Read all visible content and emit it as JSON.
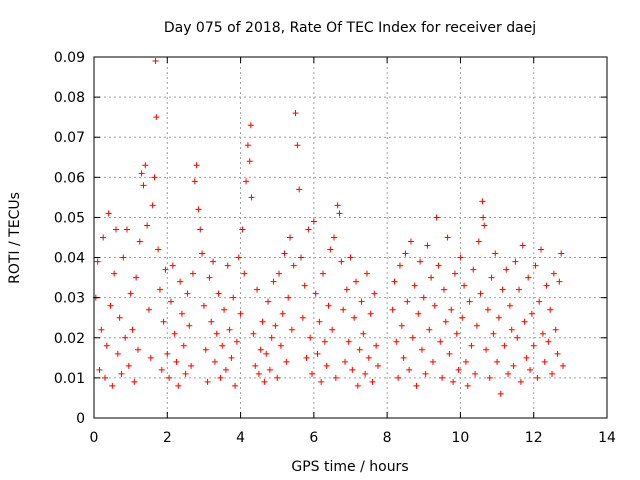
{
  "chart_data": {
    "type": "scatter",
    "title": "Day 075 of 2018, Rate Of TEC Index for receiver daej",
    "xlabel": "GPS time / hours",
    "ylabel": "ROTI / TECUs",
    "xlim": [
      0,
      14
    ],
    "ylim": [
      0,
      0.09
    ],
    "xticks": [
      0,
      2,
      4,
      6,
      8,
      10,
      12,
      14
    ],
    "xtick_labels": [
      "0",
      "2",
      "4",
      "6",
      "8",
      "10",
      "12",
      "14"
    ],
    "yticks": [
      0,
      0.01,
      0.02,
      0.03,
      0.04,
      0.05,
      0.06,
      0.07,
      0.08,
      0.09
    ],
    "ytick_labels": [
      "0",
      "0.01",
      "0.02",
      "0.03",
      "0.04",
      "0.05",
      "0.06",
      "0.07",
      "0.08",
      "0.09"
    ],
    "grid": true,
    "marker": "plus",
    "series": [
      {
        "name": "ROTI",
        "color": "#ff0000",
        "points": [
          [
            0.05,
            0.03
          ],
          [
            0.1,
            0.039
          ],
          [
            0.15,
            0.012
          ],
          [
            0.2,
            0.022
          ],
          [
            0.25,
            0.045
          ],
          [
            0.3,
            0.01
          ],
          [
            0.35,
            0.018
          ],
          [
            0.4,
            0.051
          ],
          [
            0.45,
            0.028
          ],
          [
            0.5,
            0.008
          ],
          [
            0.55,
            0.036
          ],
          [
            0.6,
            0.047
          ],
          [
            0.65,
            0.016
          ],
          [
            0.7,
            0.025
          ],
          [
            0.75,
            0.011
          ],
          [
            0.8,
            0.04
          ],
          [
            0.85,
            0.02
          ],
          [
            0.9,
            0.047
          ],
          [
            0.95,
            0.013
          ],
          [
            1.0,
            0.031
          ],
          [
            1.05,
            0.022
          ],
          [
            1.1,
            0.009
          ],
          [
            1.15,
            0.035
          ],
          [
            1.2,
            0.017
          ],
          [
            1.25,
            0.044
          ],
          [
            1.3,
            0.061
          ],
          [
            1.35,
            0.058
          ],
          [
            1.4,
            0.063
          ],
          [
            1.45,
            0.048
          ],
          [
            1.5,
            0.027
          ],
          [
            1.55,
            0.015
          ],
          [
            1.6,
            0.053
          ],
          [
            1.65,
            0.06
          ],
          [
            1.68,
            0.089
          ],
          [
            1.7,
            0.075
          ],
          [
            1.75,
            0.042
          ],
          [
            1.8,
            0.032
          ],
          [
            1.85,
            0.012
          ],
          [
            1.9,
            0.024
          ],
          [
            1.95,
            0.037
          ],
          [
            2.0,
            0.016
          ],
          [
            2.05,
            0.01
          ],
          [
            2.1,
            0.029
          ],
          [
            2.15,
            0.038
          ],
          [
            2.2,
            0.021
          ],
          [
            2.25,
            0.014
          ],
          [
            2.3,
            0.008
          ],
          [
            2.35,
            0.034
          ],
          [
            2.4,
            0.026
          ],
          [
            2.45,
            0.018
          ],
          [
            2.5,
            0.011
          ],
          [
            2.55,
            0.031
          ],
          [
            2.6,
            0.023
          ],
          [
            2.65,
            0.013
          ],
          [
            2.7,
            0.036
          ],
          [
            2.75,
            0.059
          ],
          [
            2.8,
            0.063
          ],
          [
            2.85,
            0.052
          ],
          [
            2.9,
            0.047
          ],
          [
            2.95,
            0.041
          ],
          [
            3.0,
            0.028
          ],
          [
            3.05,
            0.017
          ],
          [
            3.1,
            0.009
          ],
          [
            3.15,
            0.035
          ],
          [
            3.2,
            0.024
          ],
          [
            3.25,
            0.039
          ],
          [
            3.3,
            0.014
          ],
          [
            3.35,
            0.021
          ],
          [
            3.4,
            0.031
          ],
          [
            3.45,
            0.01
          ],
          [
            3.5,
            0.018
          ],
          [
            3.55,
            0.027
          ],
          [
            3.6,
            0.012
          ],
          [
            3.65,
            0.038
          ],
          [
            3.7,
            0.022
          ],
          [
            3.75,
            0.015
          ],
          [
            3.8,
            0.03
          ],
          [
            3.85,
            0.008
          ],
          [
            3.9,
            0.019
          ],
          [
            3.95,
            0.04
          ],
          [
            4.0,
            0.026
          ],
          [
            4.05,
            0.047
          ],
          [
            4.1,
            0.036
          ],
          [
            4.15,
            0.059
          ],
          [
            4.2,
            0.068
          ],
          [
            4.25,
            0.064
          ],
          [
            4.28,
            0.073
          ],
          [
            4.3,
            0.055
          ],
          [
            4.35,
            0.021
          ],
          [
            4.4,
            0.013
          ],
          [
            4.45,
            0.032
          ],
          [
            4.5,
            0.011
          ],
          [
            4.55,
            0.017
          ],
          [
            4.6,
            0.024
          ],
          [
            4.65,
            0.009
          ],
          [
            4.7,
            0.016
          ],
          [
            4.75,
            0.029
          ],
          [
            4.8,
            0.012
          ],
          [
            4.85,
            0.02
          ],
          [
            4.9,
            0.034
          ],
          [
            4.95,
            0.023
          ],
          [
            5.0,
            0.01
          ],
          [
            5.05,
            0.036
          ],
          [
            5.1,
            0.018
          ],
          [
            5.15,
            0.026
          ],
          [
            5.2,
            0.041
          ],
          [
            5.25,
            0.014
          ],
          [
            5.3,
            0.03
          ],
          [
            5.35,
            0.045
          ],
          [
            5.4,
            0.022
          ],
          [
            5.45,
            0.038
          ],
          [
            5.5,
            0.076
          ],
          [
            5.55,
            0.068
          ],
          [
            5.6,
            0.057
          ],
          [
            5.65,
            0.04
          ],
          [
            5.7,
            0.025
          ],
          [
            5.75,
            0.033
          ],
          [
            5.8,
            0.015
          ],
          [
            5.85,
            0.047
          ],
          [
            5.9,
            0.02
          ],
          [
            5.95,
            0.011
          ],
          [
            6.0,
            0.049
          ],
          [
            6.05,
            0.031
          ],
          [
            6.1,
            0.016
          ],
          [
            6.15,
            0.024
          ],
          [
            6.2,
            0.009
          ],
          [
            6.25,
            0.036
          ],
          [
            6.3,
            0.019
          ],
          [
            6.35,
            0.013
          ],
          [
            6.4,
            0.028
          ],
          [
            6.45,
            0.042
          ],
          [
            6.5,
            0.022
          ],
          [
            6.55,
            0.045
          ],
          [
            6.6,
            0.01
          ],
          [
            6.65,
            0.053
          ],
          [
            6.7,
            0.051
          ],
          [
            6.75,
            0.039
          ],
          [
            6.8,
            0.027
          ],
          [
            6.85,
            0.014
          ],
          [
            6.9,
            0.032
          ],
          [
            6.95,
            0.019
          ],
          [
            7.0,
            0.04
          ],
          [
            7.05,
            0.012
          ],
          [
            7.1,
            0.025
          ],
          [
            7.15,
            0.034
          ],
          [
            7.2,
            0.008
          ],
          [
            7.25,
            0.017
          ],
          [
            7.3,
            0.029
          ],
          [
            7.35,
            0.021
          ],
          [
            7.4,
            0.011
          ],
          [
            7.45,
            0.036
          ],
          [
            7.5,
            0.015
          ],
          [
            7.55,
            0.026
          ],
          [
            7.6,
            0.009
          ],
          [
            7.65,
            0.031
          ],
          [
            7.7,
            0.018
          ],
          [
            7.75,
            0.013
          ],
          [
            8.15,
            0.027
          ],
          [
            8.2,
            0.034
          ],
          [
            8.25,
            0.019
          ],
          [
            8.3,
            0.01
          ],
          [
            8.35,
            0.038
          ],
          [
            8.4,
            0.023
          ],
          [
            8.45,
            0.015
          ],
          [
            8.5,
            0.041
          ],
          [
            8.55,
            0.029
          ],
          [
            8.6,
            0.012
          ],
          [
            8.65,
            0.044
          ],
          [
            8.7,
            0.02
          ],
          [
            8.75,
            0.033
          ],
          [
            8.8,
            0.008
          ],
          [
            8.85,
            0.026
          ],
          [
            8.9,
            0.039
          ],
          [
            8.95,
            0.017
          ],
          [
            9.0,
            0.03
          ],
          [
            9.05,
            0.011
          ],
          [
            9.1,
            0.043
          ],
          [
            9.15,
            0.022
          ],
          [
            9.2,
            0.035
          ],
          [
            9.25,
            0.014
          ],
          [
            9.3,
            0.028
          ],
          [
            9.35,
            0.05
          ],
          [
            9.4,
            0.038
          ],
          [
            9.45,
            0.019
          ],
          [
            9.5,
            0.01
          ],
          [
            9.55,
            0.032
          ],
          [
            9.6,
            0.024
          ],
          [
            9.65,
            0.045
          ],
          [
            9.7,
            0.016
          ],
          [
            9.75,
            0.027
          ],
          [
            9.8,
            0.009
          ],
          [
            9.85,
            0.036
          ],
          [
            9.9,
            0.021
          ],
          [
            9.95,
            0.012
          ],
          [
            10.0,
            0.04
          ],
          [
            10.05,
            0.025
          ],
          [
            10.1,
            0.033
          ],
          [
            10.15,
            0.014
          ],
          [
            10.2,
            0.008
          ],
          [
            10.25,
            0.029
          ],
          [
            10.3,
            0.018
          ],
          [
            10.35,
            0.037
          ],
          [
            10.4,
            0.011
          ],
          [
            10.45,
            0.023
          ],
          [
            10.5,
            0.044
          ],
          [
            10.55,
            0.031
          ],
          [
            10.6,
            0.054
          ],
          [
            10.62,
            0.05
          ],
          [
            10.65,
            0.048
          ],
          [
            10.7,
            0.017
          ],
          [
            10.75,
            0.027
          ],
          [
            10.8,
            0.01
          ],
          [
            10.85,
            0.035
          ],
          [
            10.9,
            0.021
          ],
          [
            10.95,
            0.041
          ],
          [
            11.0,
            0.014
          ],
          [
            11.05,
            0.025
          ],
          [
            11.1,
            0.006
          ],
          [
            11.15,
            0.032
          ],
          [
            11.2,
            0.018
          ],
          [
            11.25,
            0.037
          ],
          [
            11.3,
            0.011
          ],
          [
            11.35,
            0.028
          ],
          [
            11.4,
            0.022
          ],
          [
            11.45,
            0.013
          ],
          [
            11.5,
            0.039
          ],
          [
            11.55,
            0.02
          ],
          [
            11.6,
            0.032
          ],
          [
            11.65,
            0.009
          ],
          [
            11.7,
            0.043
          ],
          [
            11.75,
            0.024
          ],
          [
            11.8,
            0.015
          ],
          [
            11.85,
            0.035
          ],
          [
            11.9,
            0.012
          ],
          [
            11.95,
            0.026
          ],
          [
            12.0,
            0.018
          ],
          [
            12.05,
            0.038
          ],
          [
            12.1,
            0.01
          ],
          [
            12.15,
            0.029
          ],
          [
            12.2,
            0.042
          ],
          [
            12.25,
            0.021
          ],
          [
            12.3,
            0.014
          ],
          [
            12.35,
            0.033
          ],
          [
            12.4,
            0.019
          ],
          [
            12.45,
            0.027
          ],
          [
            12.5,
            0.011
          ],
          [
            12.55,
            0.036
          ],
          [
            12.6,
            0.022
          ],
          [
            12.65,
            0.016
          ],
          [
            12.7,
            0.034
          ],
          [
            12.75,
            0.041
          ],
          [
            12.8,
            0.013
          ]
        ]
      }
    ]
  }
}
